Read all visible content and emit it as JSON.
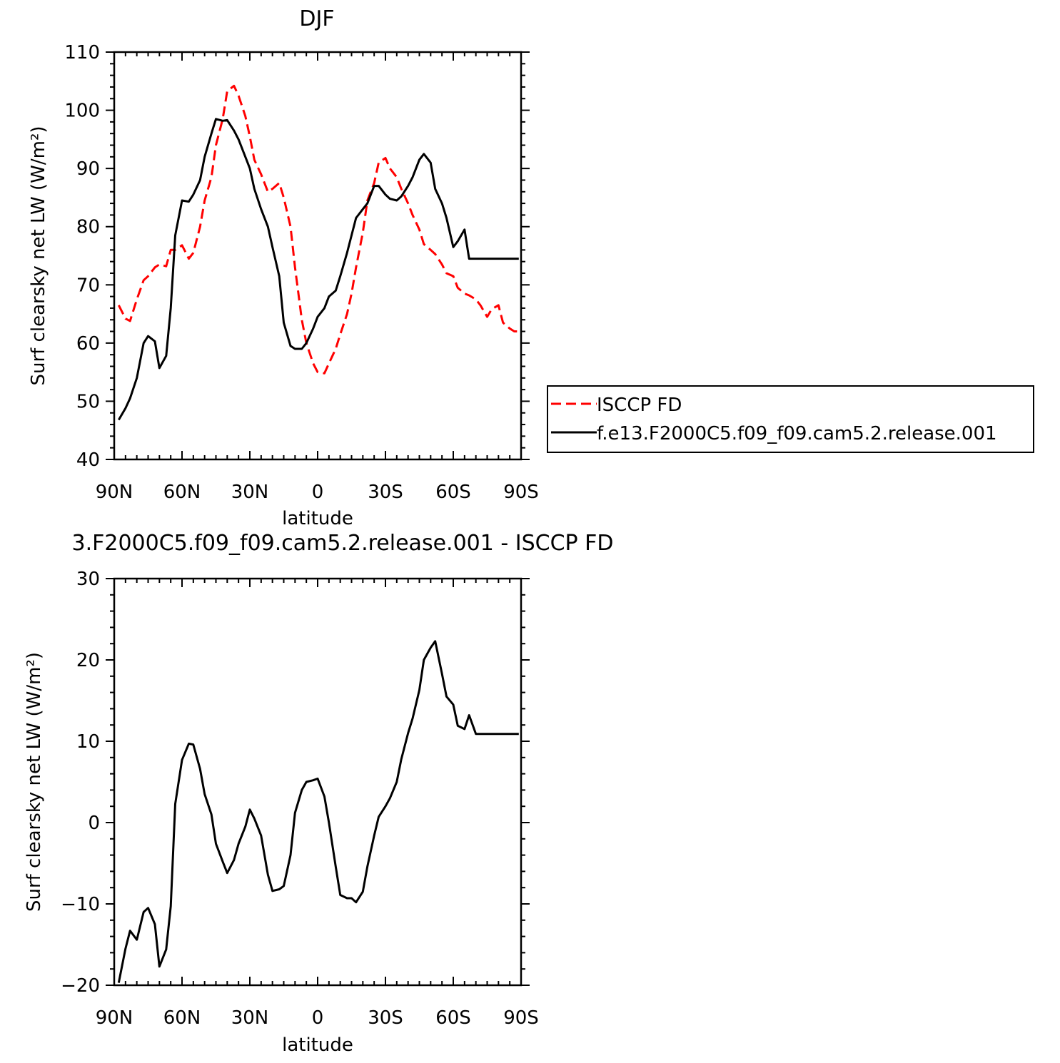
{
  "chart_data": [
    {
      "type": "line",
      "title": "DJF",
      "xlabel": "latitude",
      "ylabel": "Surf clearsky net LW (W/m²)",
      "xlim": [
        -90,
        90
      ],
      "ylim": [
        40,
        110
      ],
      "x_ticks": [
        -90,
        -60,
        -30,
        0,
        30,
        60,
        90
      ],
      "x_tick_labels": [
        "90N",
        "60N",
        "30N",
        "0",
        "30S",
        "60S",
        "90S"
      ],
      "y_ticks": [
        40,
        50,
        60,
        70,
        80,
        90,
        100,
        110
      ],
      "y_tick_labels": [
        "40",
        "50",
        "60",
        "70",
        "80",
        "90",
        "100",
        "110"
      ],
      "legend_position": "right",
      "series": [
        {
          "name": "ISCCP FD",
          "color": "#ff0000",
          "dash": "dashed",
          "x": [
            -88,
            -85,
            -83,
            -80,
            -77,
            -75,
            -72,
            -70,
            -67,
            -65,
            -63,
            -60,
            -57,
            -55,
            -52,
            -50,
            -47,
            -45,
            -42,
            -40,
            -37,
            -35,
            -32,
            -30,
            -28,
            -25,
            -22,
            -20,
            -17,
            -15,
            -12,
            -10,
            -7,
            -5,
            -2,
            0,
            3,
            5,
            8,
            10,
            13,
            15,
            17,
            20,
            22,
            25,
            27,
            30,
            32,
            35,
            37,
            40,
            42,
            45,
            47,
            50,
            52,
            55,
            57,
            60,
            62,
            65,
            67,
            70,
            72,
            75,
            77,
            80,
            82,
            85,
            87,
            89
          ],
          "y": [
            66.5,
            64.2,
            63.8,
            67.5,
            70.8,
            71.5,
            73,
            73.5,
            73.2,
            76,
            76,
            76.8,
            74.5,
            75.5,
            80,
            84.5,
            88.5,
            94,
            98.5,
            103.3,
            104.2,
            102.5,
            99,
            95.5,
            91.5,
            89,
            86,
            86.5,
            87.5,
            85,
            80,
            73,
            64,
            60,
            56.5,
            55,
            54.8,
            56.5,
            59,
            61.5,
            65,
            68.5,
            73,
            79,
            84.5,
            87.5,
            91,
            91.8,
            90,
            88.5,
            86.5,
            84,
            82,
            79.5,
            77,
            76,
            75.3,
            73.5,
            72,
            71.5,
            69.5,
            68.5,
            68.2,
            67.5,
            66.5,
            64.5,
            65.8,
            66.5,
            63.5,
            62.5,
            62,
            62
          ]
        },
        {
          "name": "f.e13.F2000C5.f09_f09.cam5.2.release.001",
          "color": "#000000",
          "dash": "solid",
          "x": [
            -88,
            -85,
            -83,
            -80,
            -77,
            -75,
            -72,
            -70,
            -67,
            -65,
            -63,
            -60,
            -57,
            -55,
            -52,
            -50,
            -47,
            -45,
            -42,
            -40,
            -37,
            -35,
            -32,
            -30,
            -28,
            -25,
            -22,
            -20,
            -17,
            -15,
            -12,
            -10,
            -7,
            -5,
            -2,
            0,
            3,
            5,
            8,
            10,
            13,
            15,
            17,
            20,
            22,
            25,
            27,
            30,
            32,
            35,
            37,
            40,
            42,
            45,
            47,
            50,
            52,
            55,
            57,
            60,
            62,
            65,
            67,
            70,
            72,
            75,
            77,
            80,
            82,
            85,
            87,
            89
          ],
          "y": [
            46.8,
            48.8,
            50.5,
            54,
            60,
            61.2,
            60.3,
            55.7,
            57.8,
            66,
            78.5,
            84.5,
            84.3,
            85.5,
            88,
            92,
            96,
            98.5,
            98.2,
            98.3,
            96.5,
            95,
            92,
            90,
            86.5,
            83,
            80,
            76.5,
            71.5,
            63.5,
            59.5,
            59,
            59,
            60,
            62.5,
            64.5,
            66,
            68,
            69,
            71.5,
            75.5,
            78.5,
            81.5,
            83,
            84,
            87,
            87,
            85.5,
            84.8,
            84.5,
            85.2,
            87,
            88.5,
            91.5,
            92.5,
            91,
            86.5,
            84,
            81.5,
            76.5,
            77.5,
            79.5,
            74.5,
            74.5,
            74.5,
            74.5,
            74.5,
            74.5,
            74.5,
            74.5,
            74.5,
            74.5
          ]
        }
      ]
    },
    {
      "type": "line",
      "title": "3.F2000C5.f09_f09.cam5.2.release.001 - ISCCP FD",
      "xlabel": "latitude",
      "ylabel": "Surf clearsky net LW (W/m²)",
      "xlim": [
        -90,
        90
      ],
      "ylim": [
        -20,
        30
      ],
      "x_ticks": [
        -90,
        -60,
        -30,
        0,
        30,
        60,
        90
      ],
      "x_tick_labels": [
        "90N",
        "60N",
        "30N",
        "0",
        "30S",
        "60S",
        "90S"
      ],
      "y_ticks": [
        -20,
        -10,
        0,
        10,
        20,
        30
      ],
      "y_tick_labels": [
        "−20",
        "−10",
        "0",
        "10",
        "20",
        "30"
      ],
      "series": [
        {
          "color": "#000000",
          "dash": "solid",
          "x": [
            -88,
            -85,
            -83,
            -80,
            -77,
            -75,
            -72,
            -70,
            -67,
            -65,
            -63,
            -60,
            -57,
            -55,
            -52,
            -50,
            -47,
            -45,
            -42,
            -40,
            -37,
            -35,
            -32,
            -30,
            -28,
            -25,
            -22,
            -20,
            -17,
            -15,
            -12,
            -10,
            -7,
            -5,
            -2,
            0,
            3,
            5,
            8,
            10,
            13,
            15,
            17,
            20,
            22,
            25,
            27,
            30,
            32,
            35,
            37,
            40,
            42,
            45,
            47,
            50,
            52,
            55,
            57,
            60,
            62,
            65,
            67,
            70,
            72,
            75,
            77,
            80,
            82,
            85,
            87,
            89
          ],
          "y": [
            -19.7,
            -15.5,
            -13.3,
            -14.4,
            -11,
            -10.5,
            -12.5,
            -17.7,
            -15.6,
            -10.3,
            2.3,
            7.7,
            9.7,
            9.6,
            6.6,
            3.5,
            1,
            -2.6,
            -4.8,
            -6.2,
            -4.6,
            -2.6,
            -0.5,
            1.6,
            0.5,
            -1.6,
            -6.4,
            -8.4,
            -8.2,
            -7.8,
            -4,
            1.2,
            4,
            5,
            5.2,
            5.4,
            3.2,
            0,
            -5.4,
            -8.9,
            -9.3,
            -9.3,
            -9.8,
            -8.5,
            -5.4,
            -1.6,
            0.7,
            2,
            3,
            5,
            7.8,
            11,
            12.8,
            16.3,
            20,
            21.5,
            22.3,
            18.3,
            15.5,
            14.5,
            11.9,
            11.5,
            13.2,
            10.9,
            10.9,
            10.9,
            10.9,
            10.9,
            10.9,
            10.9,
            10.9,
            10.9
          ]
        }
      ]
    }
  ]
}
